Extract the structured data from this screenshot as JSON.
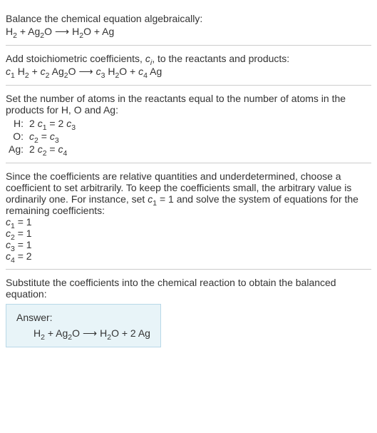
{
  "section1": {
    "title": "Balance the chemical equation algebraically:",
    "eq_parts": {
      "r1": "H",
      "r1_sub": "2",
      "plus1": " + ",
      "r2a": "Ag",
      "r2_sub1": "2",
      "r2b": "O",
      "arrow": "⟶",
      "p1a": "H",
      "p1_sub": "2",
      "p1b": "O",
      "plus2": " + ",
      "p2": "Ag"
    }
  },
  "section2": {
    "title_a": "Add stoichiometric coefficients, ",
    "title_c": "c",
    "title_i": "i",
    "title_b": ", to the reactants and products:",
    "eq_parts": {
      "c1": "c",
      "c1_sub": "1",
      "sp1": " ",
      "r1": "H",
      "r1_sub": "2",
      "plus1": " + ",
      "c2": "c",
      "c2_sub": "2",
      "sp2": " ",
      "r2a": "Ag",
      "r2_sub1": "2",
      "r2b": "O",
      "arrow": "⟶",
      "c3": "c",
      "c3_sub": "3",
      "sp3": " ",
      "p1a": "H",
      "p1_sub": "2",
      "p1b": "O",
      "plus2": " + ",
      "c4": "c",
      "c4_sub": "4",
      "sp4": " ",
      "p2": "Ag"
    }
  },
  "section3": {
    "title": "Set the number of atoms in the reactants equal to the number of atoms in the products for H, O and Ag:",
    "rows": [
      {
        "label": "H:",
        "c_l": "c",
        "s_l": "1",
        "pre_l": "2 ",
        "eq": " = ",
        "pre_r": "2 ",
        "c_r": "c",
        "s_r": "3"
      },
      {
        "label": "O:",
        "c_l": "c",
        "s_l": "2",
        "pre_l": "",
        "eq": " = ",
        "pre_r": "",
        "c_r": "c",
        "s_r": "3"
      },
      {
        "label": "Ag:",
        "c_l": "c",
        "s_l": "2",
        "pre_l": "2 ",
        "eq": " = ",
        "pre_r": "",
        "c_r": "c",
        "s_r": "4"
      }
    ]
  },
  "section4": {
    "title_a": "Since the coefficients are relative quantities and underdetermined, choose a coefficient to set arbitrarily. To keep the coefficients small, the arbitrary value is ordinarily one. For instance, set ",
    "title_c": "c",
    "title_sub": "1",
    "title_b": " = 1 and solve the system of equations for the remaining coefficients:",
    "lines": [
      {
        "c": "c",
        "s": "1",
        "rest": " = 1"
      },
      {
        "c": "c",
        "s": "2",
        "rest": " = 1"
      },
      {
        "c": "c",
        "s": "3",
        "rest": " = 1"
      },
      {
        "c": "c",
        "s": "4",
        "rest": " = 2"
      }
    ]
  },
  "section5": {
    "title": "Substitute the coefficients into the chemical reaction to obtain the balanced equation:",
    "answer_label": "Answer:",
    "eq_parts": {
      "r1": "H",
      "r1_sub": "2",
      "plus1": " + ",
      "r2a": "Ag",
      "r2_sub1": "2",
      "r2b": "O",
      "arrow": "⟶",
      "p1a": "H",
      "p1_sub": "2",
      "p1b": "O",
      "plus2": " + 2 ",
      "p2": "Ag"
    }
  }
}
